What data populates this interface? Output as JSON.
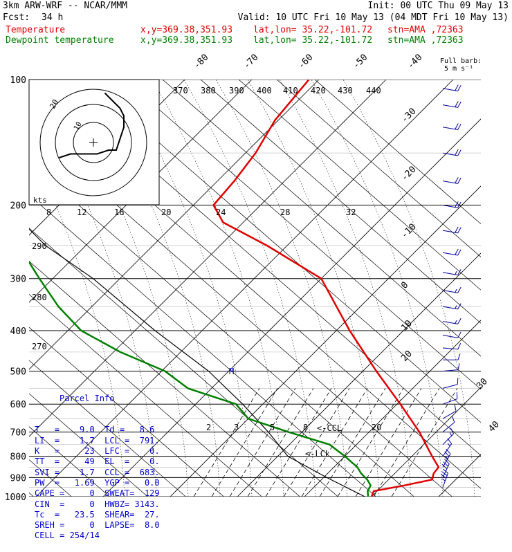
{
  "header": {
    "model": "3km ARW-WRF -- NCAR/MMM",
    "init": "Init: 00 UTC Thu 09 May 13",
    "fcst_label": "Fcst:",
    "fcst_value": "34 h",
    "valid": "Valid: 10 UTC Fri 10 May 13 (04 MDT Fri 10 May 13)"
  },
  "legend": {
    "temperature": {
      "label": "Temperature",
      "xy": "x,y=369.38,351.93",
      "latlon": "lat,lon= 35.22,-101.72",
      "stn": "stn=AMA ,72363",
      "color": "#e00000"
    },
    "dewpoint": {
      "label": "Dewpoint temperature",
      "xy": "x,y=369.38,351.93",
      "latlon": "lat,lon= 35.22,-101.72",
      "stn": "stn=AMA ,72363",
      "color": "#008000"
    }
  },
  "barb_key": {
    "line1": "Full barb:",
    "line2": "5 m s⁻¹"
  },
  "parcel_info": {
    "title": "Parcel Info",
    "rows": [
      "T   =    9.0  Td =   8.6",
      "LI  =    1.7  LCL =  791.",
      "K   =     23  LFC =    0.",
      "TT  =     49  EL  =    0.",
      "SVI =    1.7  CCL =  683.",
      "PW  =   1.69  YGP =   0.0",
      "CAPE =     0  SWEAT=  129",
      "CIN  =     0  HWBZ= 3143.",
      "Tc  =   23.5  SHEAR=  27.",
      "SREH =     0  LAPSE=  8.0",
      "CELL = 254/14"
    ]
  },
  "markers": {
    "ccl": "<-CCL",
    "lcl": "<-LCL"
  },
  "chart_data": {
    "type": "line",
    "title": "",
    "y_axis": "pressure (hPa), log scale",
    "pressure_ticks": [
      100,
      200,
      300,
      400,
      500,
      600,
      700,
      800,
      900,
      1000
    ],
    "skewed_temperature_ticks": [
      -80,
      -70,
      -60,
      -50,
      -40,
      -30,
      -20,
      -10,
      0,
      10,
      20,
      30,
      40
    ],
    "theta_labels": [
      370,
      380,
      390,
      400,
      410,
      420,
      430,
      440
    ],
    "theta_side_labels": [
      290,
      280,
      270
    ],
    "mixing_ratio_labels": [
      2,
      3,
      5,
      8,
      20
    ],
    "hodograph_speed_labels_kts": [
      8,
      12,
      16,
      20,
      24,
      28,
      32
    ],
    "hodograph_axis_label": "kts",
    "hodograph_ring_labels": [
      "20",
      "10"
    ],
    "series": [
      {
        "name": "Temperature",
        "color": "#e00000",
        "points": [
          [
            1000,
            10
          ],
          [
            970,
            9.5
          ],
          [
            940,
            13.2
          ],
          [
            910,
            16.5
          ],
          [
            880,
            15.8
          ],
          [
            850,
            15.6
          ],
          [
            800,
            13.0
          ],
          [
            700,
            7.5
          ],
          [
            600,
            0.5
          ],
          [
            500,
            -8.0
          ],
          [
            400,
            -18.0
          ],
          [
            300,
            -30.0
          ],
          [
            250,
            -43.0
          ],
          [
            220,
            -53.0
          ],
          [
            200,
            -57.0
          ],
          [
            175,
            -57.5
          ],
          [
            150,
            -58.5
          ],
          [
            125,
            -60.5
          ],
          [
            100,
            -61.5
          ]
        ]
      },
      {
        "name": "Dewpoint temperature",
        "color": "#008000",
        "points": [
          [
            1000,
            9.5
          ],
          [
            970,
            8.6
          ],
          [
            940,
            8.2
          ],
          [
            910,
            6.8
          ],
          [
            880,
            5.0
          ],
          [
            850,
            3.5
          ],
          [
            800,
            0.0
          ],
          [
            750,
            -4.0
          ],
          [
            700,
            -12.0
          ],
          [
            650,
            -20.0
          ],
          [
            600,
            -24.0
          ],
          [
            550,
            -33.5
          ],
          [
            500,
            -39.5
          ],
          [
            450,
            -49.0
          ],
          [
            400,
            -58.0
          ],
          [
            350,
            -65.0
          ],
          [
            300,
            -72.0
          ],
          [
            250,
            -80.0
          ],
          [
            220,
            -88.0
          ],
          [
            200,
            -92.0
          ],
          [
            175,
            -96.0
          ],
          [
            150,
            -100.0
          ],
          [
            125,
            -104.0
          ],
          [
            100,
            -108.0
          ]
        ]
      }
    ],
    "parcel_ascent": {
      "color": "#000000",
      "points": [
        [
          1000,
          9.0
        ],
        [
          900,
          0.5
        ],
        [
          800,
          -8.5
        ],
        [
          700,
          -15.0
        ],
        [
          600,
          -23.0
        ],
        [
          500,
          -33.0
        ],
        [
          400,
          -47.0
        ],
        [
          300,
          -64.0
        ],
        [
          250,
          -76.0
        ],
        [
          200,
          -88.0
        ]
      ]
    },
    "hodograph": {
      "points_uv_kts": [
        [
          -9,
          -4
        ],
        [
          -6,
          -3
        ],
        [
          -2,
          -3
        ],
        [
          1,
          -3
        ],
        [
          4,
          -2
        ],
        [
          6,
          -2
        ],
        [
          7,
          1
        ],
        [
          8,
          4
        ],
        [
          8,
          7
        ],
        [
          7,
          9
        ],
        [
          5,
          11
        ],
        [
          4,
          12
        ],
        [
          3,
          13
        ]
      ]
    },
    "wind_barbs": {
      "color": "#000099",
      "levels": [
        {
          "p": 950,
          "dir": 200,
          "spd": 35
        },
        {
          "p": 900,
          "dir": 205,
          "spd": 30
        },
        {
          "p": 850,
          "dir": 210,
          "spd": 25
        },
        {
          "p": 800,
          "dir": 215,
          "spd": 15
        },
        {
          "p": 750,
          "dir": 225,
          "spd": 15
        },
        {
          "p": 700,
          "dir": 230,
          "spd": 10
        },
        {
          "p": 650,
          "dir": 240,
          "spd": 10
        },
        {
          "p": 600,
          "dir": 250,
          "spd": 10
        },
        {
          "p": 550,
          "dir": 255,
          "spd": 10
        },
        {
          "p": 500,
          "dir": 265,
          "spd": 10
        },
        {
          "p": 470,
          "dir": 270,
          "spd": 10
        },
        {
          "p": 440,
          "dir": 275,
          "spd": 10
        },
        {
          "p": 410,
          "dir": 280,
          "spd": 10
        },
        {
          "p": 380,
          "dir": 280,
          "spd": 15
        },
        {
          "p": 350,
          "dir": 280,
          "spd": 15
        },
        {
          "p": 320,
          "dir": 280,
          "spd": 15
        },
        {
          "p": 290,
          "dir": 280,
          "spd": 15
        },
        {
          "p": 260,
          "dir": 280,
          "spd": 20
        },
        {
          "p": 230,
          "dir": 280,
          "spd": 20
        },
        {
          "p": 200,
          "dir": 280,
          "spd": 20
        },
        {
          "p": 175,
          "dir": 280,
          "spd": 20
        },
        {
          "p": 150,
          "dir": 280,
          "spd": 20
        },
        {
          "p": 130,
          "dir": 280,
          "spd": 20
        },
        {
          "p": 115,
          "dir": 280,
          "spd": 20
        },
        {
          "p": 105,
          "dir": 280,
          "spd": 20
        }
      ]
    }
  }
}
